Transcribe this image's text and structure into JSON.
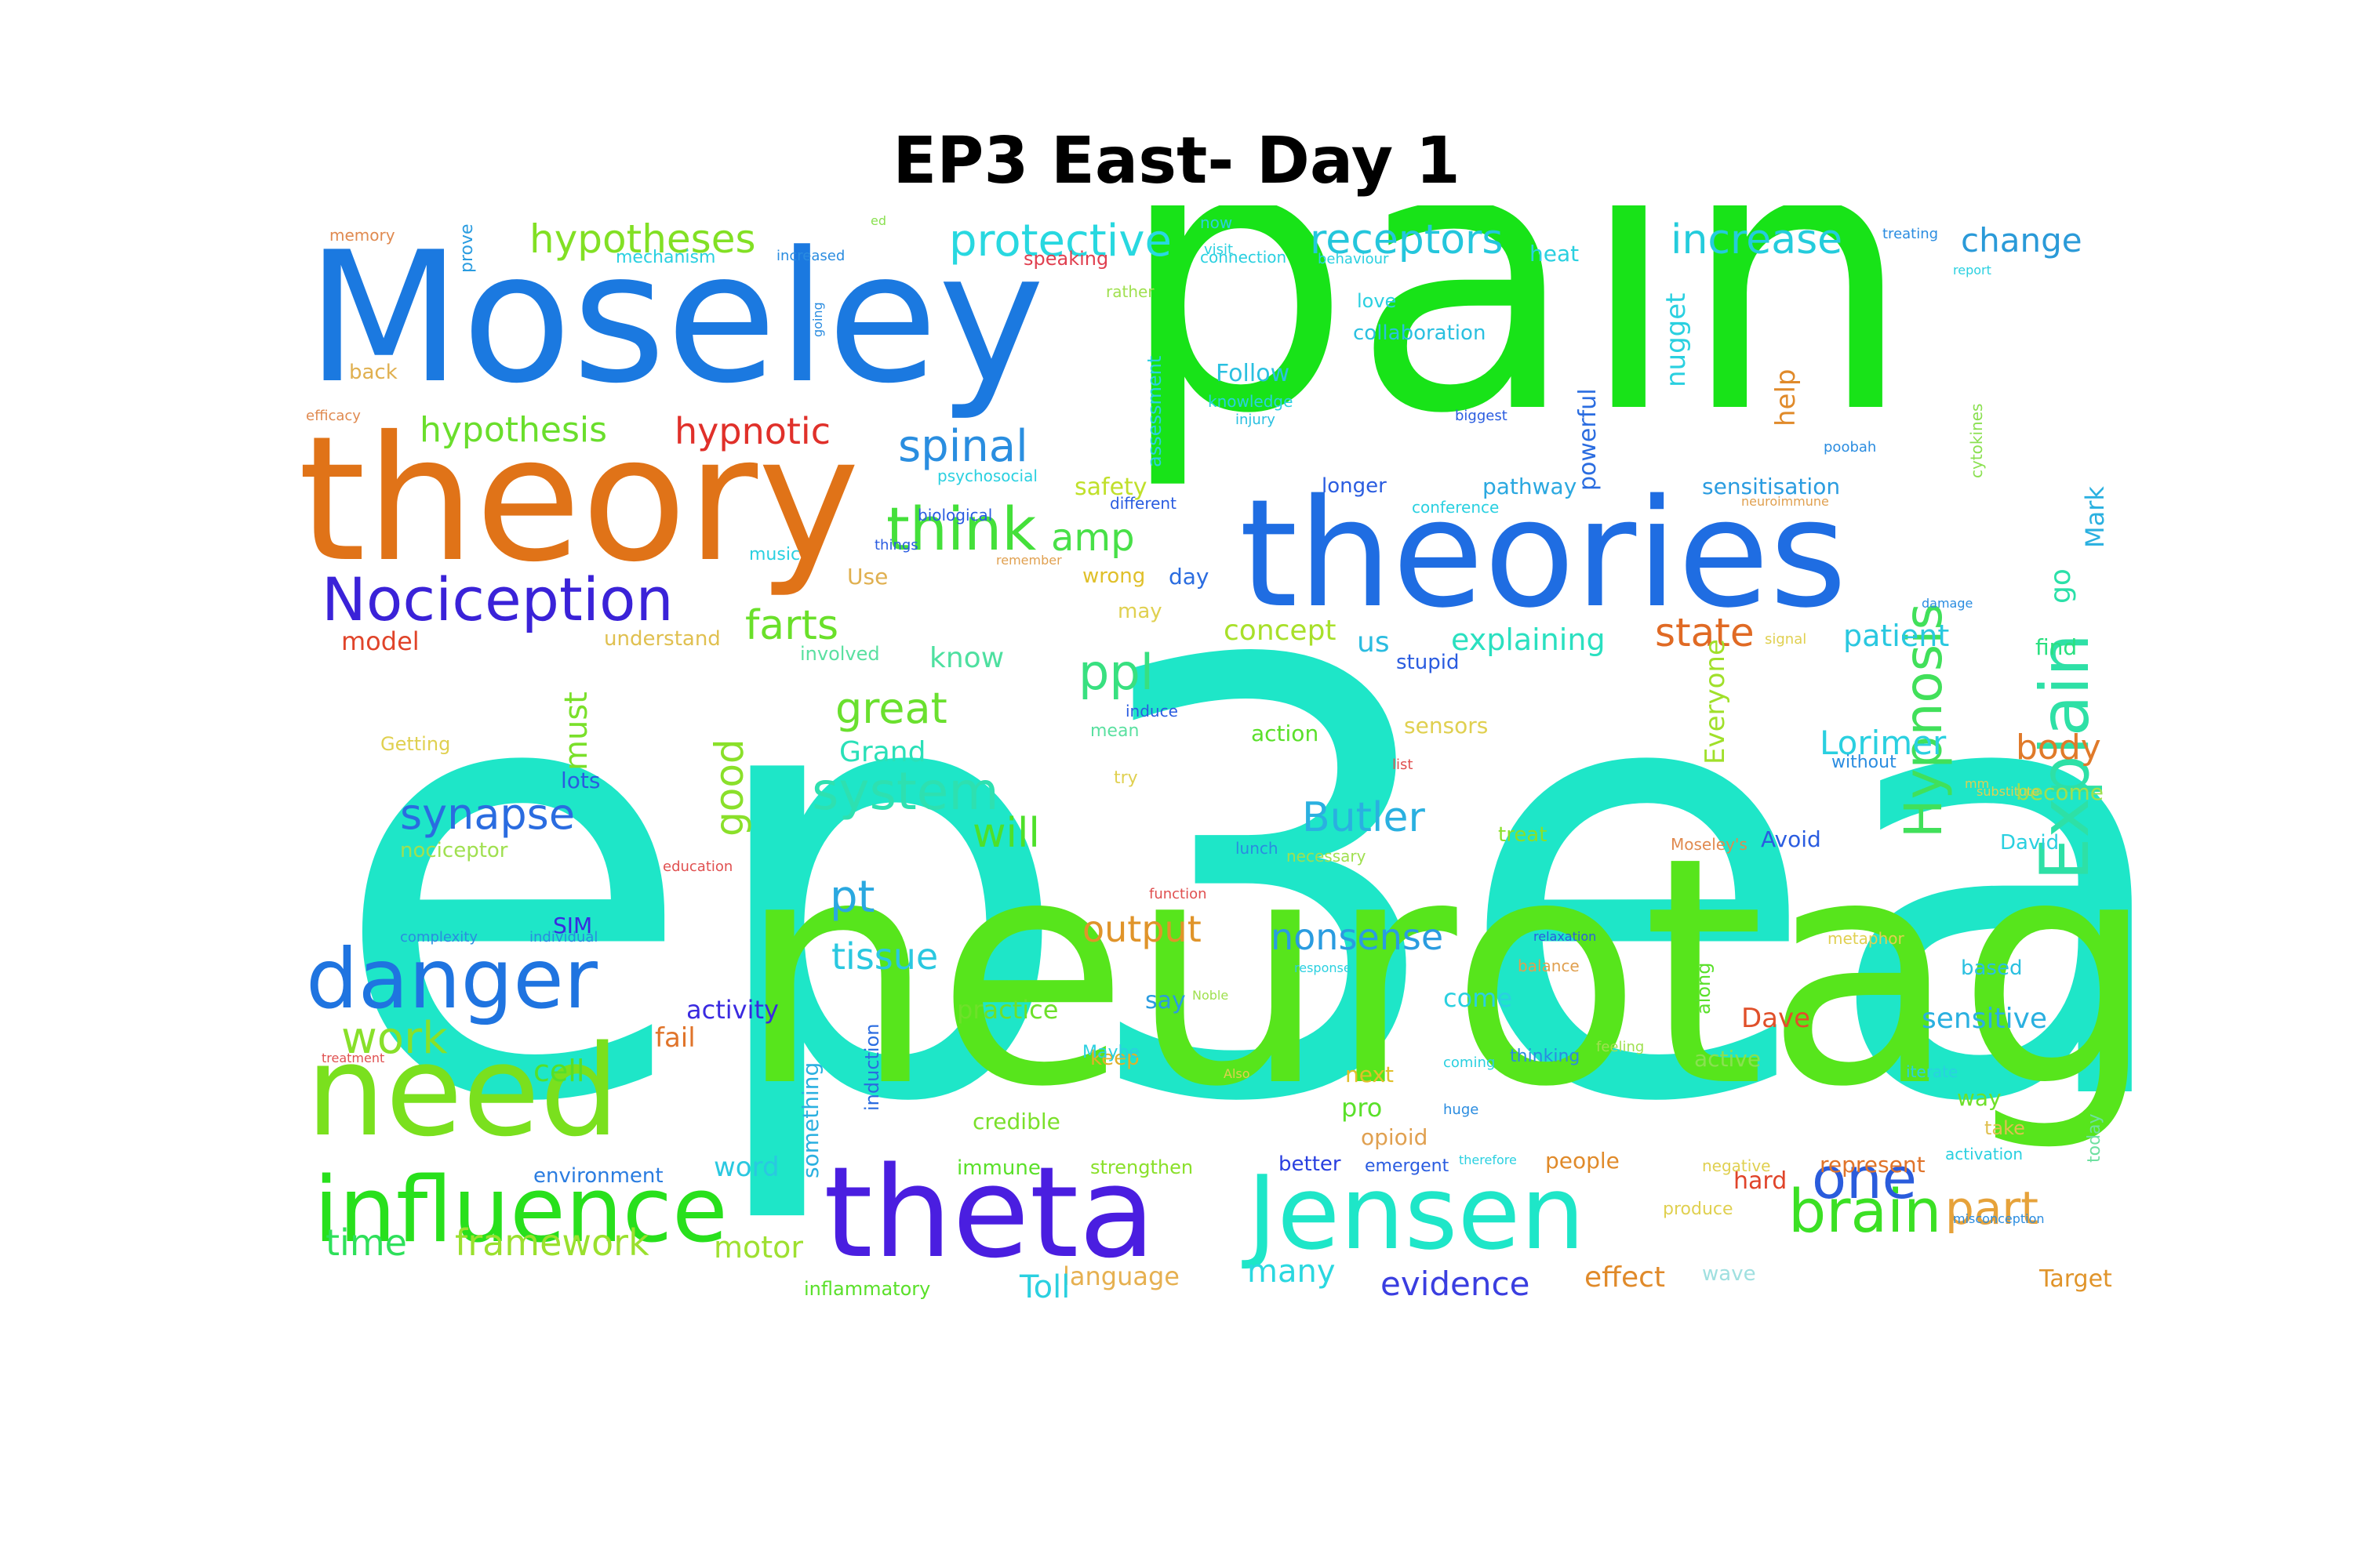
{
  "title": "EP3 East- Day 1",
  "words": [
    {
      "text": "ep3east",
      "color": "#1ee6c8"
    },
    {
      "text": "pain",
      "color": "#18e318"
    },
    {
      "text": "neurotag",
      "color": "#57e51c"
    },
    {
      "text": "Moseley",
      "color": "#1b79e0"
    },
    {
      "text": "theory",
      "color": "#e07318"
    },
    {
      "text": "theories",
      "color": "#1f6de2"
    },
    {
      "text": "theta",
      "color": "#4a1ee0"
    },
    {
      "text": "Jensen",
      "color": "#1ee6c8"
    },
    {
      "text": "need",
      "color": "#7ae01e"
    },
    {
      "text": "influence",
      "color": "#28e01c"
    },
    {
      "text": "danger",
      "color": "#1f74e0"
    },
    {
      "text": "Explain",
      "color": "#2ee0a6"
    },
    {
      "text": "Hypnosis",
      "color": "#41e05a"
    },
    {
      "text": "Nociception",
      "color": "#3a22d8"
    },
    {
      "text": "think",
      "color": "#44e03a"
    },
    {
      "text": "spinal",
      "color": "#2a8ee0"
    },
    {
      "text": "protective",
      "color": "#28d8e0"
    },
    {
      "text": "receptors",
      "color": "#24c6dc"
    },
    {
      "text": "hypotheses",
      "color": "#82e024"
    },
    {
      "text": "increase",
      "color": "#24ccdc"
    },
    {
      "text": "change",
      "color": "#2a9ad8"
    },
    {
      "text": "hypothesis",
      "color": "#6ade2c"
    },
    {
      "text": "hypnotic",
      "color": "#e0302a"
    },
    {
      "text": "brain",
      "color": "#3be024"
    },
    {
      "text": "one",
      "color": "#2a5cdc"
    },
    {
      "text": "part",
      "color": "#e6a23a"
    },
    {
      "text": "system",
      "color": "#2ee0b0"
    },
    {
      "text": "synapse",
      "color": "#2a6ce0"
    },
    {
      "text": "great",
      "color": "#6ae02e"
    },
    {
      "text": "ppl",
      "color": "#38e080"
    },
    {
      "text": "Butler",
      "color": "#2ab0e0"
    },
    {
      "text": "farts",
      "color": "#6ae02a"
    },
    {
      "text": "amp",
      "color": "#48e048"
    },
    {
      "text": "state",
      "color": "#e06a24"
    },
    {
      "text": "work",
      "color": "#88e02a"
    },
    {
      "text": "time",
      "color": "#2ee05a"
    },
    {
      "text": "framework",
      "color": "#9ae02e"
    },
    {
      "text": "motor",
      "color": "#9ee030"
    },
    {
      "text": "good",
      "color": "#8ae02a"
    },
    {
      "text": "will",
      "color": "#4ee02a"
    },
    {
      "text": "pt",
      "color": "#2aa8e0"
    },
    {
      "text": "tissue",
      "color": "#2ac8e0"
    },
    {
      "text": "output",
      "color": "#e0942a"
    },
    {
      "text": "nonsense",
      "color": "#2a9ce0"
    },
    {
      "text": "evidence",
      "color": "#3a3ee0"
    },
    {
      "text": "effect",
      "color": "#e08a2a"
    },
    {
      "text": "many",
      "color": "#2ad8e0"
    },
    {
      "text": "language",
      "color": "#e6b050"
    },
    {
      "text": "Toll",
      "color": "#2ad0e0"
    },
    {
      "text": "body",
      "color": "#e07a2a"
    },
    {
      "text": "Lorimer",
      "color": "#2ad0e0"
    },
    {
      "text": "patient",
      "color": "#2ac8e0"
    },
    {
      "text": "explaining",
      "color": "#2ae0c0"
    },
    {
      "text": "concept",
      "color": "#a8e02a"
    },
    {
      "text": "must",
      "color": "#7ae02a"
    },
    {
      "text": "model",
      "color": "#e0442a"
    },
    {
      "text": "know",
      "color": "#4ee0a0"
    },
    {
      "text": "Grand",
      "color": "#2ae0b8"
    },
    {
      "text": "us",
      "color": "#2abce0"
    },
    {
      "text": "Everyone",
      "color": "#a0e02a"
    },
    {
      "text": "nugget",
      "color": "#2ad0e0"
    },
    {
      "text": "help",
      "color": "#e08a2a"
    },
    {
      "text": "sensitive",
      "color": "#2ab0e0"
    },
    {
      "text": "Dave",
      "color": "#e0502a"
    },
    {
      "text": "activity",
      "color": "#3a2ae0"
    },
    {
      "text": "practice",
      "color": "#6ee02a"
    },
    {
      "text": "cell",
      "color": "#54e02a"
    },
    {
      "text": "word",
      "color": "#2ac8e0"
    },
    {
      "text": "immune",
      "color": "#5ae02a"
    },
    {
      "text": "strengthen",
      "color": "#8ae02a"
    },
    {
      "text": "better",
      "color": "#2a40e0"
    },
    {
      "text": "people",
      "color": "#e08a2a"
    },
    {
      "text": "hard",
      "color": "#e0442a"
    },
    {
      "text": "represent",
      "color": "#e0742a"
    },
    {
      "text": "Target",
      "color": "#e0942a"
    },
    {
      "text": "wave",
      "color": "#a0e0e0"
    },
    {
      "text": "inflammatory",
      "color": "#5ae02a"
    },
    {
      "text": "credible",
      "color": "#7ae02a"
    },
    {
      "text": "environment",
      "color": "#2a7ce0"
    },
    {
      "text": "fail",
      "color": "#e0742a"
    },
    {
      "text": "SIM",
      "color": "#3a2ae0"
    },
    {
      "text": "safety",
      "color": "#c0e02a"
    },
    {
      "text": "Use",
      "color": "#e0b050"
    },
    {
      "text": "day",
      "color": "#2a6ce0"
    },
    {
      "text": "wrong",
      "color": "#e0c02a"
    },
    {
      "text": "sensors",
      "color": "#e0d050"
    },
    {
      "text": "action",
      "color": "#5ae02a"
    },
    {
      "text": "treat",
      "color": "#8ae02a"
    },
    {
      "text": "Avoid",
      "color": "#2a5ce0"
    },
    {
      "text": "David",
      "color": "#2ad0e0"
    },
    {
      "text": "become",
      "color": "#a0e050"
    },
    {
      "text": "way",
      "color": "#6ee02a"
    },
    {
      "text": "take",
      "color": "#e0c050"
    },
    {
      "text": "active",
      "color": "#8ae050"
    },
    {
      "text": "next",
      "color": "#e0c02a"
    },
    {
      "text": "pro",
      "color": "#5ae02a"
    },
    {
      "text": "opioid",
      "color": "#e0a050"
    },
    {
      "text": "keep",
      "color": "#e0b02a"
    },
    {
      "text": "say",
      "color": "#2a9ce0"
    },
    {
      "text": "come",
      "color": "#2ad0e0"
    },
    {
      "text": "go",
      "color": "#2ae0a8"
    },
    {
      "text": "Mark",
      "color": "#2ab0e0"
    },
    {
      "text": "find",
      "color": "#2ae080"
    },
    {
      "text": "pathway",
      "color": "#2aa8e0"
    },
    {
      "text": "sensitisation",
      "color": "#2a9ce0"
    },
    {
      "text": "longer",
      "color": "#2a5ce0"
    },
    {
      "text": "powerful",
      "color": "#2a6ce0"
    },
    {
      "text": "heat",
      "color": "#2ad0e0"
    },
    {
      "text": "Follow",
      "color": "#2ac0e0"
    },
    {
      "text": "collaboration",
      "color": "#2ac0e0"
    },
    {
      "text": "understand",
      "color": "#e0c050"
    },
    {
      "text": "involved",
      "color": "#5ae0a0"
    },
    {
      "text": "something",
      "color": "#2ab0e0"
    },
    {
      "text": "induction",
      "color": "#2a6ce0"
    },
    {
      "text": "along",
      "color": "#5ae02a"
    },
    {
      "text": "today",
      "color": "#6ee0a0"
    },
    {
      "text": "based",
      "color": "#2ac0e0"
    },
    {
      "text": "back",
      "color": "#e0b050"
    },
    {
      "text": "memory",
      "color": "#e08a50"
    },
    {
      "text": "prove",
      "color": "#2a9ce0"
    },
    {
      "text": "mechanism",
      "color": "#2ad0e0"
    },
    {
      "text": "increased",
      "color": "#2a8ce0"
    },
    {
      "text": "speaking",
      "color": "#e04050"
    },
    {
      "text": "connection",
      "color": "#2ad0e0"
    },
    {
      "text": "behaviour",
      "color": "#2ad0e0"
    },
    {
      "text": "treating",
      "color": "#2a8ce0"
    },
    {
      "text": "report",
      "color": "#2ad0e0"
    },
    {
      "text": "cytokines",
      "color": "#8ae050"
    },
    {
      "text": "poobah",
      "color": "#2a8ce0"
    },
    {
      "text": "efficacy",
      "color": "#e08a50"
    },
    {
      "text": "injury",
      "color": "#2ac0e0"
    },
    {
      "text": "biggest",
      "color": "#2a5ce0"
    },
    {
      "text": "Getting",
      "color": "#e0d050"
    },
    {
      "text": "nociceptor",
      "color": "#a0e050"
    },
    {
      "text": "education",
      "color": "#e05050"
    },
    {
      "text": "lunch",
      "color": "#2a8ce0"
    },
    {
      "text": "necessary",
      "color": "#a0e050"
    },
    {
      "text": "Moseley's",
      "color": "#e08a50"
    },
    {
      "text": "function",
      "color": "#e05050"
    },
    {
      "text": "relaxation",
      "color": "#2a5ce0"
    },
    {
      "text": "metaphor",
      "color": "#e0d050"
    },
    {
      "text": "thinking",
      "color": "#2a8ce0"
    },
    {
      "text": "Maybe",
      "color": "#2ad0e0"
    },
    {
      "text": "emergent",
      "color": "#2a5ce0"
    },
    {
      "text": "produce",
      "color": "#e0d050"
    },
    {
      "text": "negative",
      "color": "#e0d050"
    },
    {
      "text": "activation",
      "color": "#2ad0e0"
    },
    {
      "text": "misconception",
      "color": "#2a8ce0"
    },
    {
      "text": "without",
      "color": "#2a8ce0"
    },
    {
      "text": "stupid",
      "color": "#2a5ce0"
    },
    {
      "text": "induce",
      "color": "#2a5ce0"
    },
    {
      "text": "mean",
      "color": "#5ae0a0"
    },
    {
      "text": "biological",
      "color": "#2a5ce0"
    },
    {
      "text": "music",
      "color": "#2ad0e0"
    },
    {
      "text": "psychosocial",
      "color": "#2ad0e0"
    },
    {
      "text": "different",
      "color": "#2a5ce0"
    },
    {
      "text": "try",
      "color": "#e0d050"
    },
    {
      "text": "may",
      "color": "#e0d050"
    },
    {
      "text": "assessment",
      "color": "#2ad0e0"
    },
    {
      "text": "knowledge",
      "color": "#2ad0e0"
    },
    {
      "text": "conference",
      "color": "#2ad0e0"
    },
    {
      "text": "balance",
      "color": "#e0a050"
    },
    {
      "text": "response",
      "color": "#2ad0e0"
    },
    {
      "text": "treatment",
      "color": "#e05050"
    },
    {
      "text": "complexity",
      "color": "#2a8ce0"
    },
    {
      "text": "individual",
      "color": "#2a8ce0"
    },
    {
      "text": "lots",
      "color": "#2a5ce0"
    },
    {
      "text": "ed",
      "color": "#8ae050"
    },
    {
      "text": "rather",
      "color": "#a0e050"
    },
    {
      "text": "visit",
      "color": "#2ad0e0"
    },
    {
      "text": "love",
      "color": "#2ad0e0"
    },
    {
      "text": "now",
      "color": "#2ad0e0"
    },
    {
      "text": "iterate",
      "color": "#2ad0e0"
    },
    {
      "text": "mm",
      "color": "#e0d050"
    },
    {
      "text": "feeling",
      "color": "#a0e050"
    },
    {
      "text": "coming",
      "color": "#2ad0e0"
    },
    {
      "text": "Also",
      "color": "#e0d050"
    },
    {
      "text": "huge",
      "color": "#2a8ce0"
    },
    {
      "text": "going",
      "color": "#2a8ce0"
    },
    {
      "text": "signal",
      "color": "#e0d050"
    },
    {
      "text": "damage",
      "color": "#2a8ce0"
    },
    {
      "text": "neuroimmune",
      "color": "#e0a050"
    },
    {
      "text": "things",
      "color": "#2a5ce0"
    },
    {
      "text": "remember",
      "color": "#e0a050"
    },
    {
      "text": "list",
      "color": "#e05050"
    },
    {
      "text": "therefore",
      "color": "#2ad0e0"
    },
    {
      "text": "Noble",
      "color": "#a0e050"
    },
    {
      "text": "substitute",
      "color": "#e0d050"
    },
    {
      "text": "taxonomy",
      "color": "#e0a050"
    },
    {
      "text": "answers",
      "color": "#e0d050"
    },
    {
      "text": "seen",
      "color": "#a0e050"
    }
  ]
}
